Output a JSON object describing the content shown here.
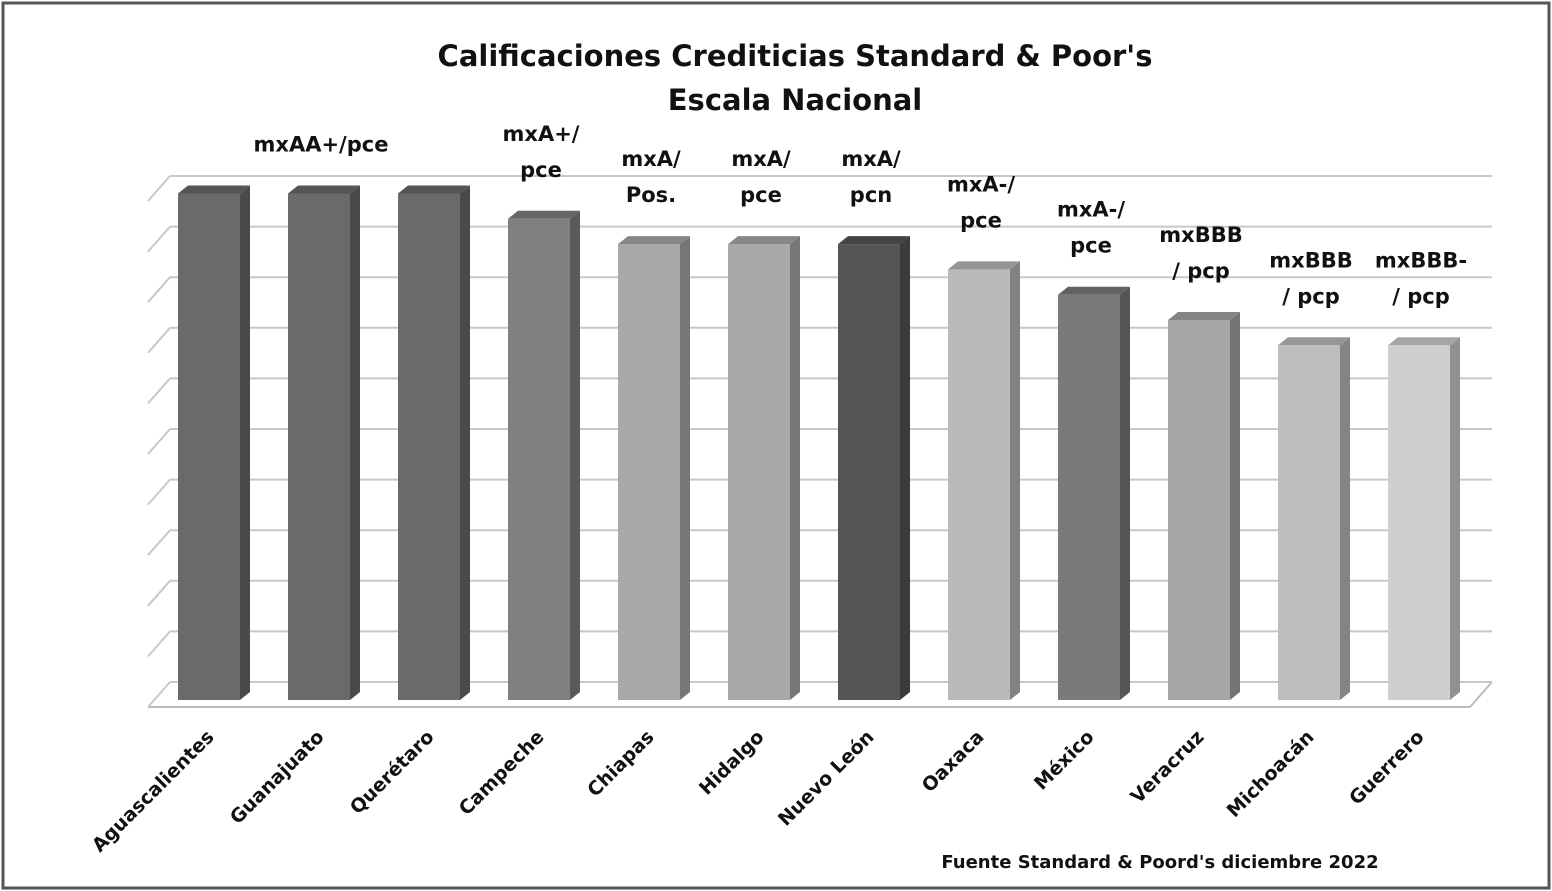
{
  "chart_data": {
    "type": "bar3d",
    "title": "Calificaciones Crediticias Standard & Poor's",
    "subtitle": "Escala Nacional",
    "categories": [
      "Aguascalientes",
      "Guanajuato",
      "Querétaro",
      "Campeche",
      "Chiapas",
      "Hidalgo",
      "Nuevo León",
      "Oaxaca",
      "México",
      "Veracruz",
      "Michoacán",
      "Guerrero"
    ],
    "values": [
      10,
      10,
      10,
      9.5,
      9,
      9,
      9,
      8.5,
      8,
      7.5,
      7,
      7
    ],
    "value_labels": [
      null,
      [
        "mxAA+/pce"
      ],
      null,
      [
        "mxA+/",
        "pce"
      ],
      [
        "mxA/",
        "Pos."
      ],
      [
        "mxA/",
        "pce"
      ],
      [
        "mxA/",
        "pcn"
      ],
      [
        "mxA-/",
        "pce"
      ],
      [
        "mxA-/",
        "pce"
      ],
      [
        "mxBBB",
        "/ pcp"
      ],
      [
        "mxBBB",
        "/ pcp"
      ],
      [
        "mxBBB-",
        "/ pcp"
      ]
    ],
    "colors": [
      "#6a6a6a",
      "#6a6a6a",
      "#6a6a6a",
      "#808080",
      "#a9a9a9",
      "#a9a9a9",
      "#555555",
      "#bababa",
      "#7a7a7a",
      "#a6a6a6",
      "#bdbdbd",
      "#cfcfcf"
    ],
    "ylim": [
      0,
      10
    ],
    "yticks": [
      0,
      1,
      2,
      3,
      4,
      5,
      6,
      7,
      8,
      9,
      10
    ],
    "ytick_labels": false,
    "grid": true,
    "source": "Fuente Standard & Poord's diciembre 2022"
  }
}
